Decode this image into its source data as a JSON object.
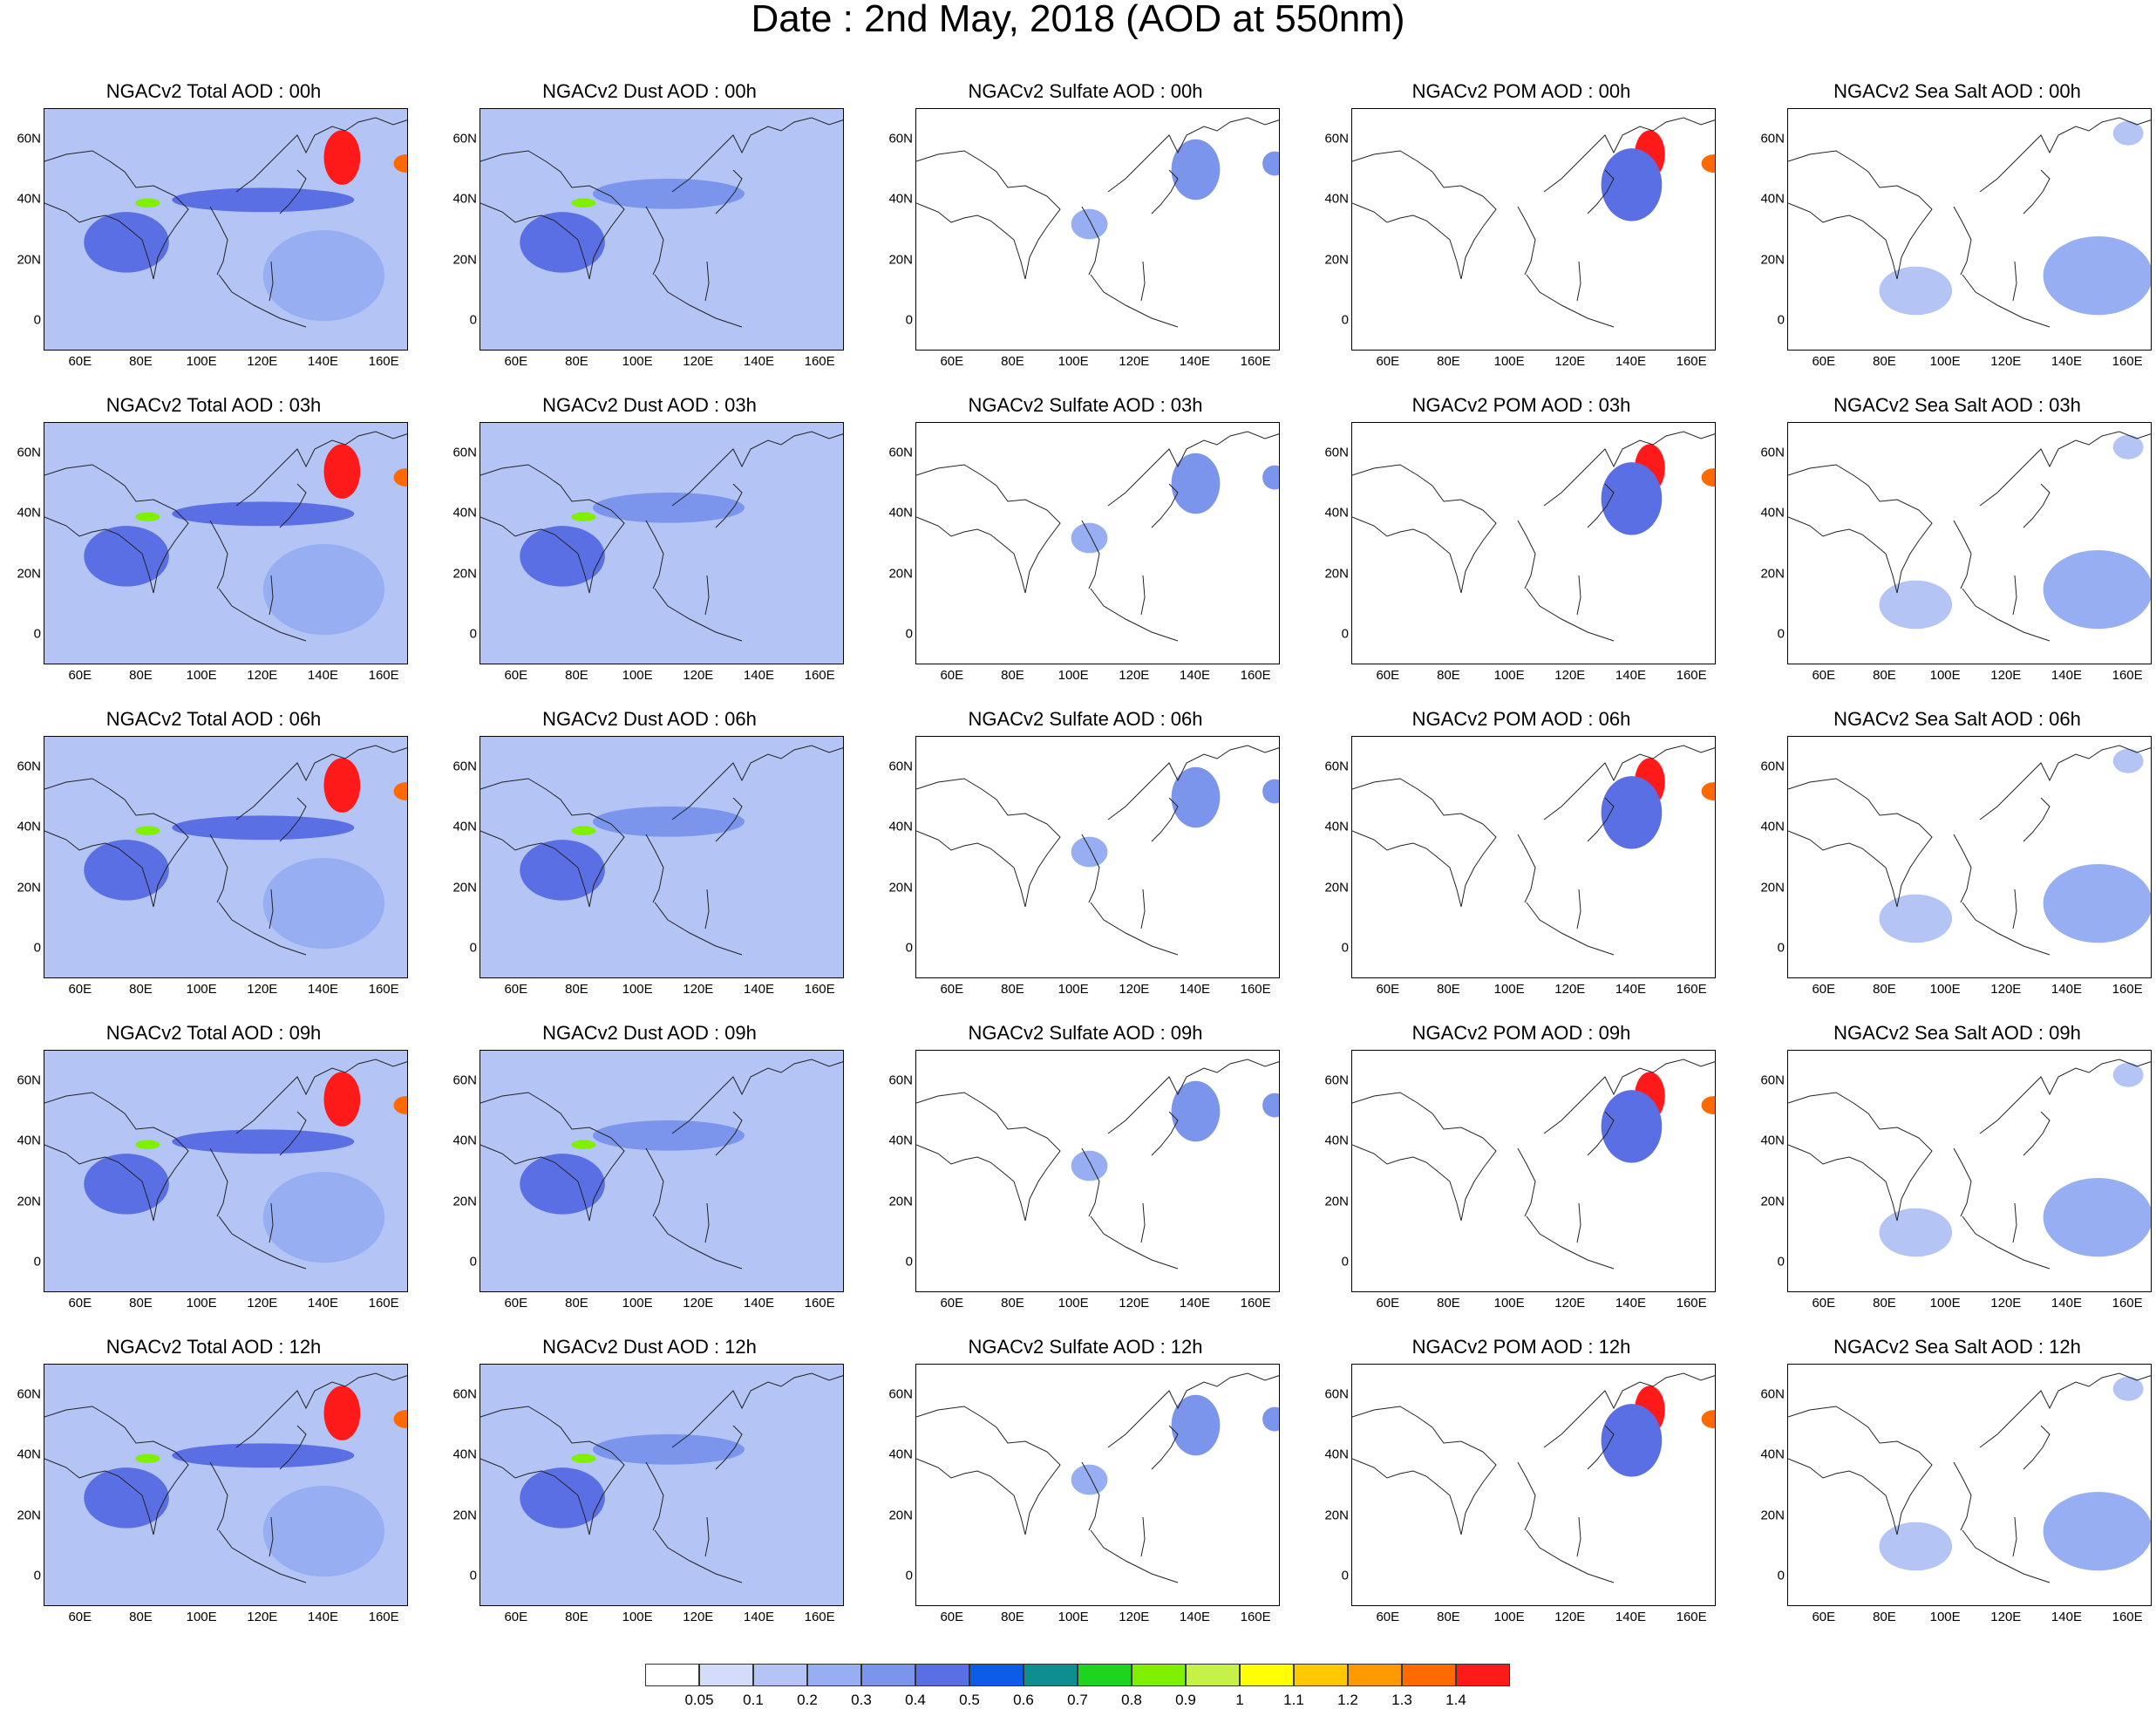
{
  "title": "Date : 2nd May, 2018 (AOD at 550nm)",
  "axes": {
    "x_ticks": [
      "60E",
      "80E",
      "100E",
      "120E",
      "140E",
      "160E"
    ],
    "y_ticks": [
      "60N",
      "40N",
      "20N",
      "0"
    ],
    "lon_range": [
      48,
      168
    ],
    "lat_range": [
      -10,
      70
    ]
  },
  "legend": {
    "levels": [
      "0.05",
      "0.1",
      "0.2",
      "0.3",
      "0.4",
      "0.5",
      "0.6",
      "0.7",
      "0.8",
      "0.9",
      "1",
      "1.1",
      "1.2",
      "1.3",
      "1.4"
    ],
    "colors": [
      "#ffffff",
      "#d3dcf8",
      "#b3c4f5",
      "#97aef2",
      "#7b94ec",
      "#5a6fe3",
      "#0d5ce8",
      "#0e8e8e",
      "#1fd41f",
      "#7ef000",
      "#c6f248",
      "#ffff00",
      "#ffc800",
      "#ff9900",
      "#ff6a00",
      "#ff1a1a"
    ]
  },
  "chart_data": {
    "type": "heatmap",
    "description_units": "AOD at 550nm",
    "columns": [
      {
        "species": "total",
        "titles": [
          "NGACv2 Total AOD : 00h",
          "NGACv2 Total AOD : 03h",
          "NGACv2 Total AOD : 06h",
          "NGACv2 Total AOD : 09h",
          "NGACv2 Total AOD  : 12h"
        ]
      },
      {
        "species": "dust",
        "titles": [
          "NGACv2 Dust AOD : 00h",
          "NGACv2 Dust AOD : 03h",
          "NGACv2 Dust AOD : 06h",
          "NGACv2 Dust AOD : 09h",
          "NGACv2 Dust AOD : 12h"
        ]
      },
      {
        "species": "sulfate",
        "titles": [
          "NGACv2 Sulfate AOD : 00h",
          "NGACv2 Sulfate AOD : 03h",
          "NGACv2 Sulfate AOD : 06h",
          "NGACv2 Sulfate AOD : 09h",
          "NGACv2 Sulfate AOD : 12h"
        ]
      },
      {
        "species": "pom",
        "titles": [
          "NGACv2 POM AOD : 00h",
          "NGACv2 POM AOD : 03h",
          "NGACv2 POM AOD : 06h",
          "NGACv2 POM AOD : 09h",
          "NGACv2 POM  AOD : 12h"
        ]
      },
      {
        "species": "seasalt",
        "titles": [
          "NGACv2 Sea Salt AOD : 00h",
          "NGACv2 Sea Salt AOD : 03h",
          "NGACv2 Sea Salt AOD : 06h",
          "NGACv2 Sea Salt  AOD : 09h",
          "NGACv2 Sea Salt  AOD : 12h"
        ]
      }
    ],
    "features": {
      "total": [
        {
          "lon": 146,
          "lat": 54,
          "rx": 6,
          "ry": 9,
          "aod": 1.4
        },
        {
          "lon": 167,
          "lat": 52,
          "rx": 4,
          "ry": 3,
          "aod": 1.3
        },
        {
          "lon": 82,
          "lat": 39,
          "rx": 4,
          "ry": 1.5,
          "aod": 0.8
        },
        {
          "lon": 75,
          "lat": 26,
          "rx": 14,
          "ry": 10,
          "aod": 0.4
        },
        {
          "lon": 120,
          "lat": 40,
          "rx": 30,
          "ry": 4,
          "aod": 0.4
        },
        {
          "lon": 140,
          "lat": 15,
          "rx": 20,
          "ry": 15,
          "aod": 0.2
        }
      ],
      "dust": [
        {
          "lon": 82,
          "lat": 39,
          "rx": 4,
          "ry": 1.5,
          "aod": 0.8
        },
        {
          "lon": 75,
          "lat": 26,
          "rx": 14,
          "ry": 10,
          "aod": 0.4
        },
        {
          "lon": 110,
          "lat": 42,
          "rx": 25,
          "ry": 5,
          "aod": 0.3
        }
      ],
      "sulfate": [
        {
          "lon": 140,
          "lat": 50,
          "rx": 8,
          "ry": 10,
          "aod": 0.3
        },
        {
          "lon": 166,
          "lat": 52,
          "rx": 4,
          "ry": 4,
          "aod": 0.3
        },
        {
          "lon": 105,
          "lat": 32,
          "rx": 6,
          "ry": 5,
          "aod": 0.2
        }
      ],
      "pom": [
        {
          "lon": 146,
          "lat": 55,
          "rx": 5,
          "ry": 8,
          "aod": 1.4
        },
        {
          "lon": 167,
          "lat": 52,
          "rx": 4,
          "ry": 3,
          "aod": 1.3
        },
        {
          "lon": 140,
          "lat": 45,
          "rx": 10,
          "ry": 12,
          "aod": 0.4
        }
      ],
      "seasalt": [
        {
          "lon": 150,
          "lat": 15,
          "rx": 18,
          "ry": 13,
          "aod": 0.2
        },
        {
          "lon": 90,
          "lat": 10,
          "rx": 12,
          "ry": 8,
          "aod": 0.1
        },
        {
          "lon": 160,
          "lat": 62,
          "rx": 5,
          "ry": 4,
          "aod": 0.1
        }
      ]
    }
  }
}
